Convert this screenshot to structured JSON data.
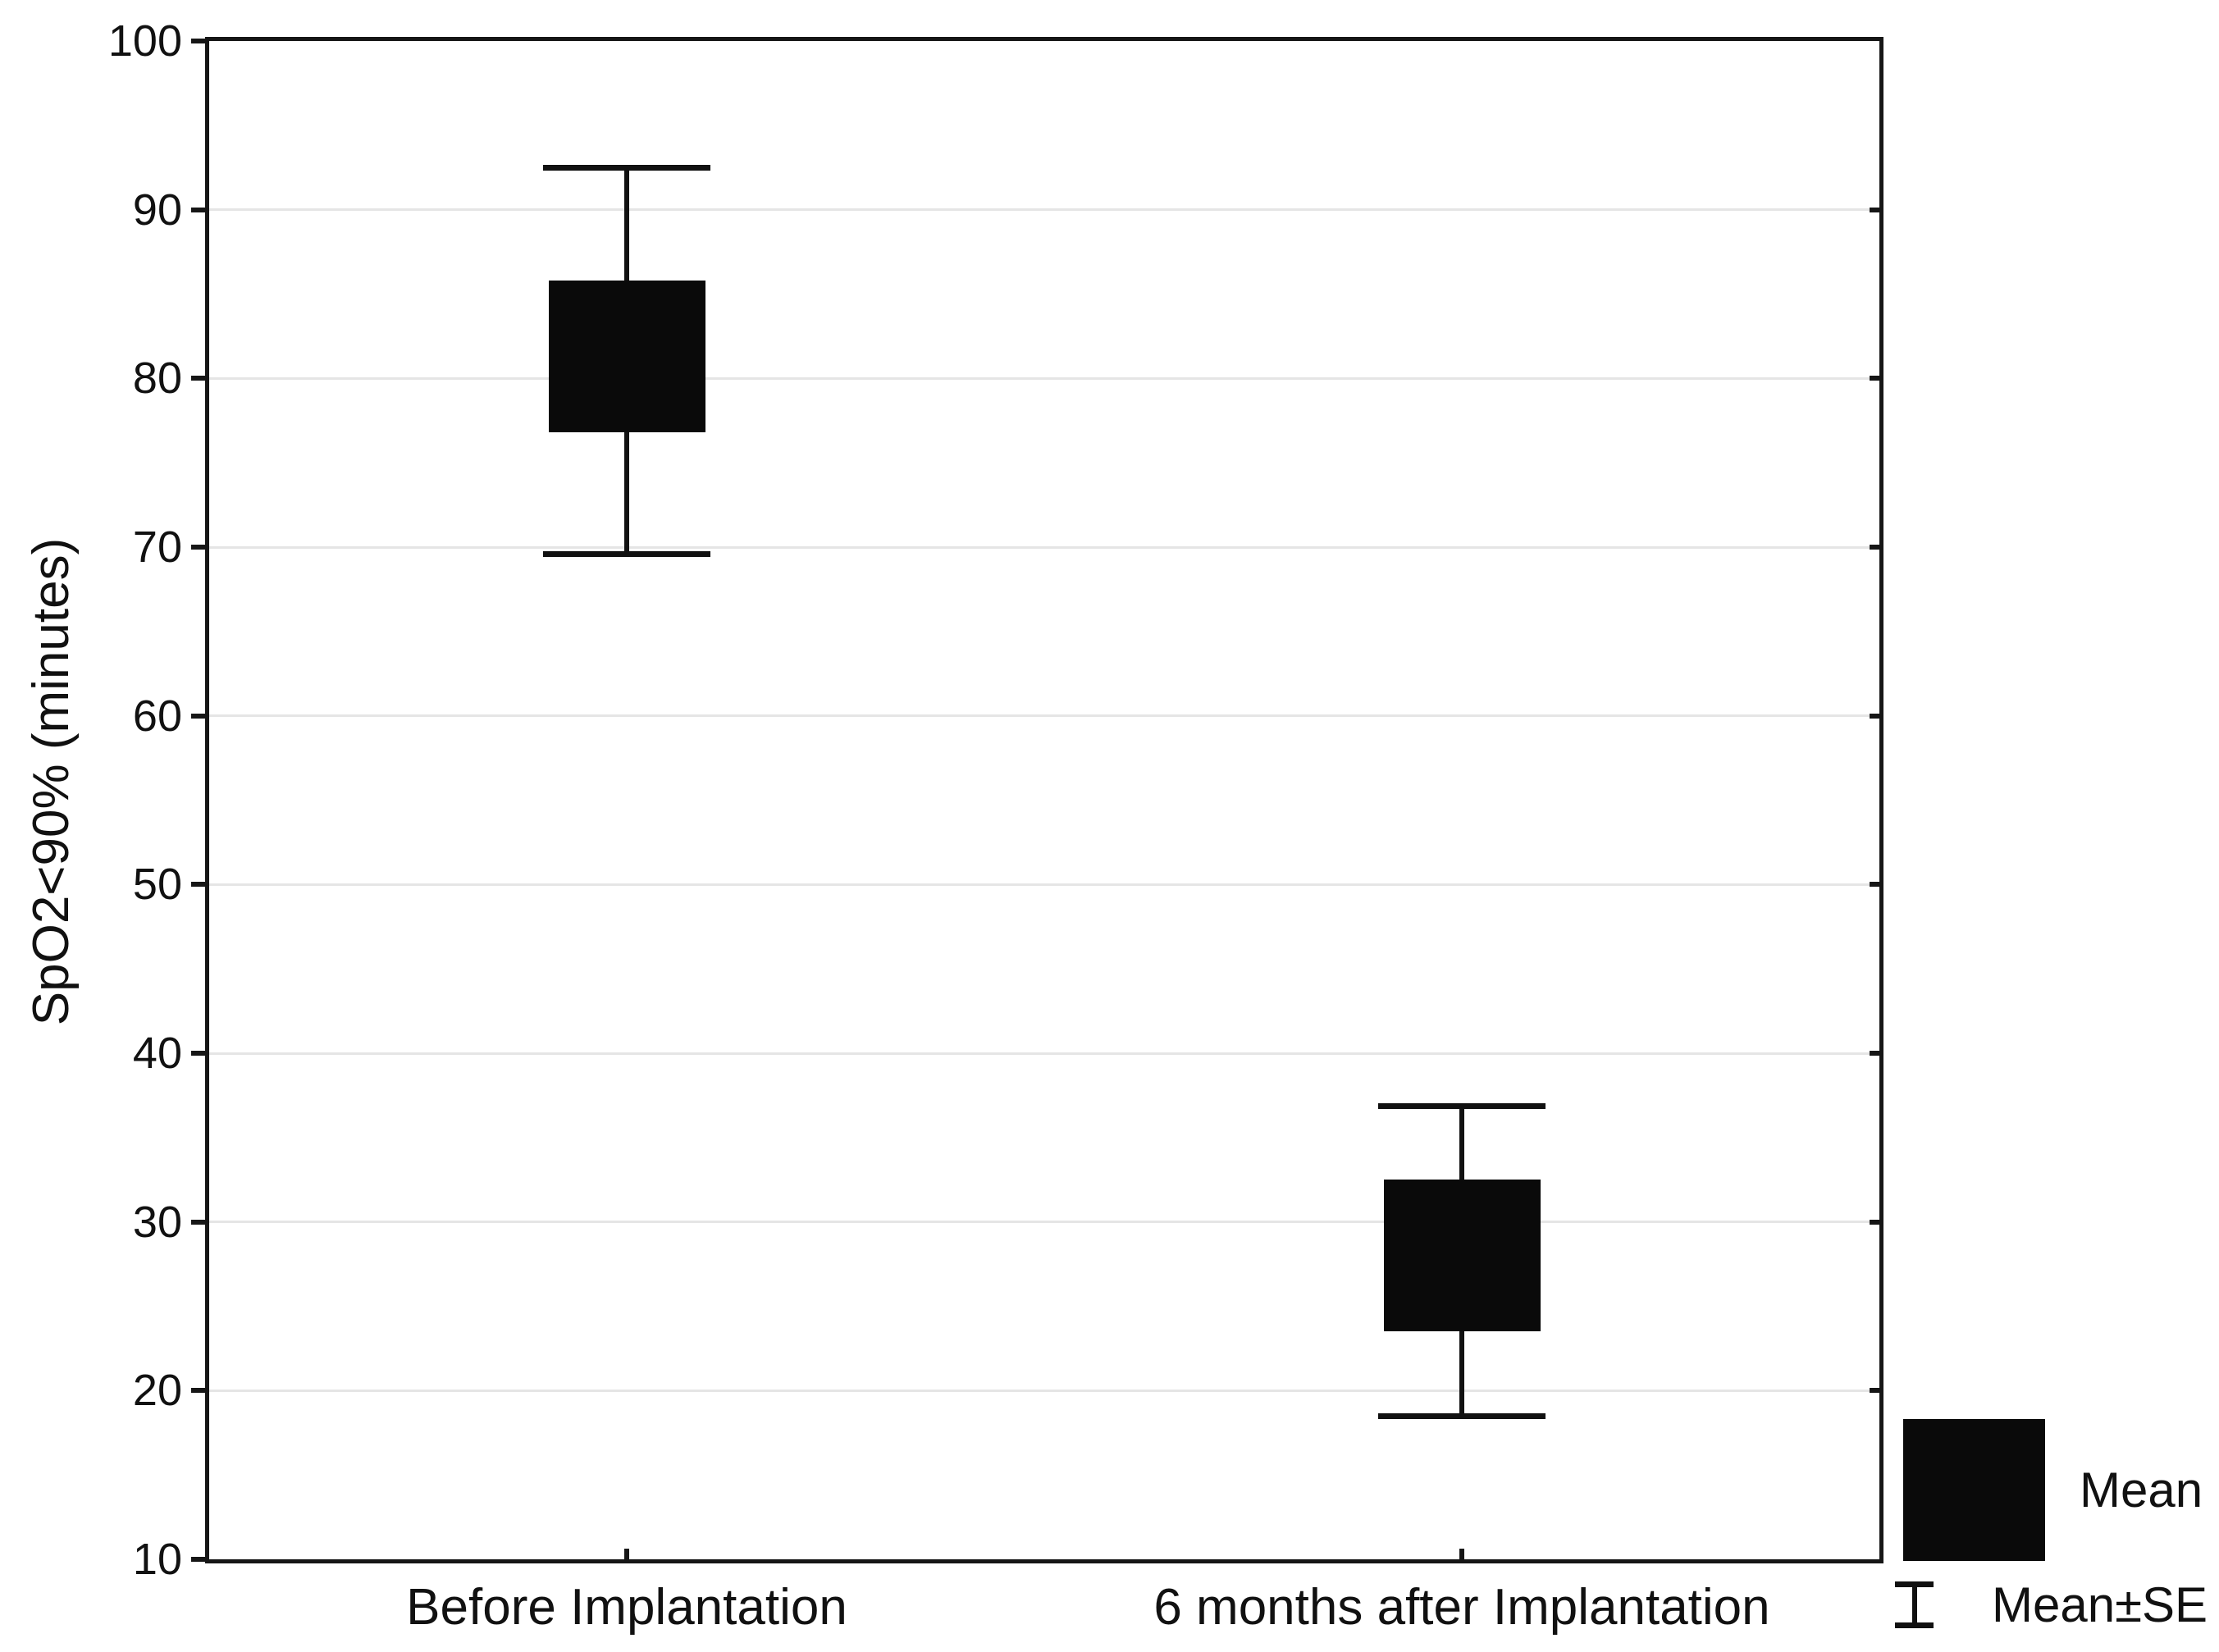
{
  "chart_data": {
    "type": "box",
    "variant": "mean-se-box-whisker",
    "title": "",
    "xlabel": "",
    "ylabel": "SpO2<90% (minutes)",
    "ylim": [
      10,
      100
    ],
    "yticks": [
      10,
      20,
      30,
      40,
      50,
      60,
      70,
      80,
      90,
      100
    ],
    "grid": "horizontal",
    "legend_position": "bottom-right",
    "categories": [
      "Before Implantation",
      "6 months after Implantation"
    ],
    "series": [
      {
        "category": "Before Implantation",
        "mean": 81.3,
        "box_low": 76.8,
        "box_high": 85.8,
        "whisker_low": 69.6,
        "whisker_high": 92.5
      },
      {
        "category": "6 months after Implantation",
        "mean": 28.0,
        "box_low": 23.5,
        "box_high": 32.5,
        "whisker_low": 18.5,
        "whisker_high": 36.9
      }
    ],
    "legend": [
      {
        "symbol": "filled-box",
        "label": "Mean"
      },
      {
        "symbol": "error-bar",
        "label": "Mean±SE"
      }
    ],
    "colors": {
      "box_fill": "#0a0a0a",
      "line": "#161616",
      "grid": "#e5e5e5",
      "background": "#ffffff",
      "text": "#111111"
    }
  }
}
